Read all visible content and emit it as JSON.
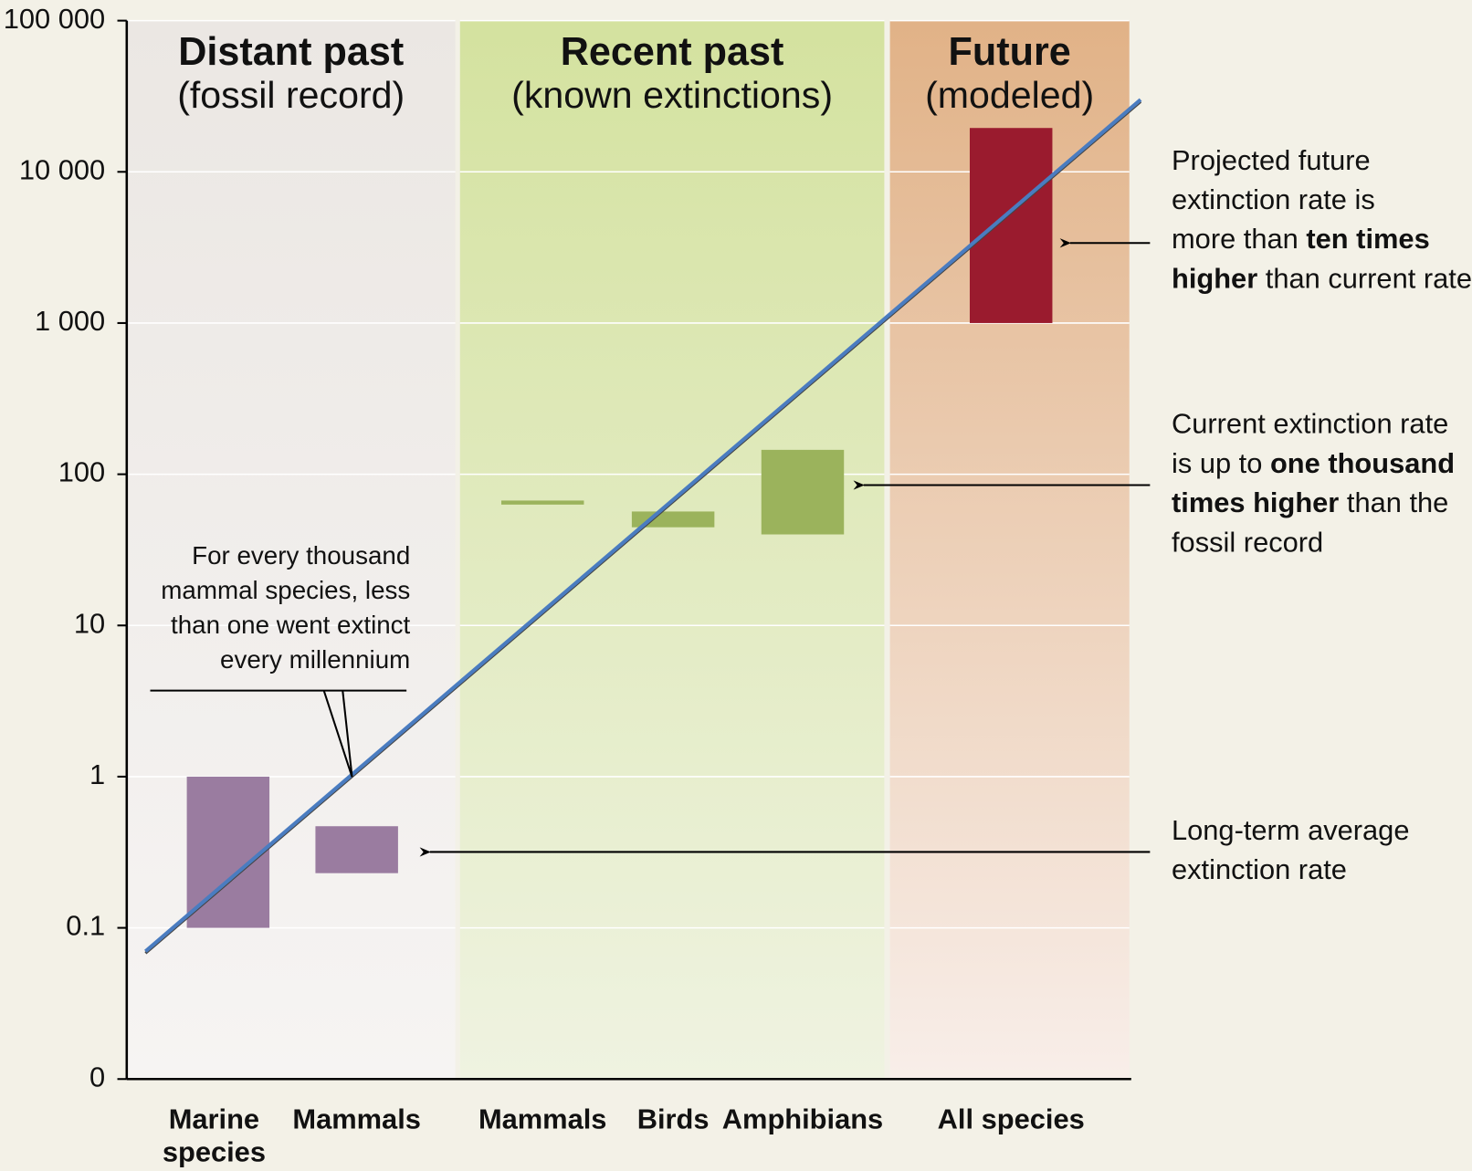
{
  "chart_data": {
    "type": "floating_bar",
    "log_scale": true,
    "ylim": [
      0.01,
      100000
    ],
    "yticks": [
      {
        "value": 0,
        "label": "0"
      },
      0.1,
      1,
      10,
      100,
      {
        "value": 1000,
        "label": "1 000"
      },
      {
        "value": 10000,
        "label": "10 000"
      },
      {
        "value": 100000,
        "label": "100 000"
      }
    ],
    "grid": true,
    "groups": [
      {
        "title": "Distant past",
        "subtitle": "(fossil record)",
        "color": "#9a7ca0",
        "title_color": "#6e4a82",
        "members": [
          0,
          1
        ]
      },
      {
        "title": "Recent past",
        "subtitle": "(known extinctions)",
        "color": "#9bb35c",
        "title_color": "#689a3a",
        "members": [
          2,
          3,
          4
        ]
      },
      {
        "title": "Future",
        "subtitle": "(modeled)",
        "color": "#9a1b2e",
        "title_color": "#7a2838",
        "members": [
          5
        ]
      }
    ],
    "categories": [
      [
        "Marine",
        "species"
      ],
      [
        "Mammals"
      ],
      [
        "Mammals"
      ],
      [
        "Birds"
      ],
      [
        "Amphibians"
      ],
      [
        "All species"
      ]
    ],
    "low": [
      0.1,
      0.23,
      63,
      44.6,
      40,
      1000
    ],
    "high": [
      1,
      0.47,
      67,
      56.7,
      145,
      19500
    ],
    "trend_line": {
      "values": [
        0.07,
        30000
      ],
      "color": "#4a7cc0"
    },
    "annotations": [
      {
        "lines": [
          [
            {
              "text": "Projected future",
              "bold": false
            }
          ],
          [
            {
              "text": "extinction rate is",
              "bold": false
            }
          ],
          [
            {
              "text": "more than ",
              "bold": false
            },
            {
              "text": "ten times",
              "bold": true
            }
          ],
          [
            {
              "text": "higher",
              "bold": true
            },
            {
              "text": " than current rate",
              "bold": false
            }
          ]
        ]
      },
      {
        "lines": [
          [
            {
              "text": "Current extinction rate",
              "bold": false
            }
          ],
          [
            {
              "text": "is up to ",
              "bold": false
            },
            {
              "text": "one thousand",
              "bold": true
            }
          ],
          [
            {
              "text": "times higher",
              "bold": true
            },
            {
              "text": " than the",
              "bold": false
            }
          ],
          [
            {
              "text": "fossil record",
              "bold": false
            }
          ]
        ]
      },
      {
        "lines": [
          [
            {
              "text": "Long-term average",
              "bold": false
            }
          ],
          [
            {
              "text": "extinction rate",
              "bold": false
            }
          ]
        ]
      }
    ],
    "callout": [
      "For every thousand",
      "mammal species, less",
      "than one went extinct",
      "every millennium"
    ]
  }
}
